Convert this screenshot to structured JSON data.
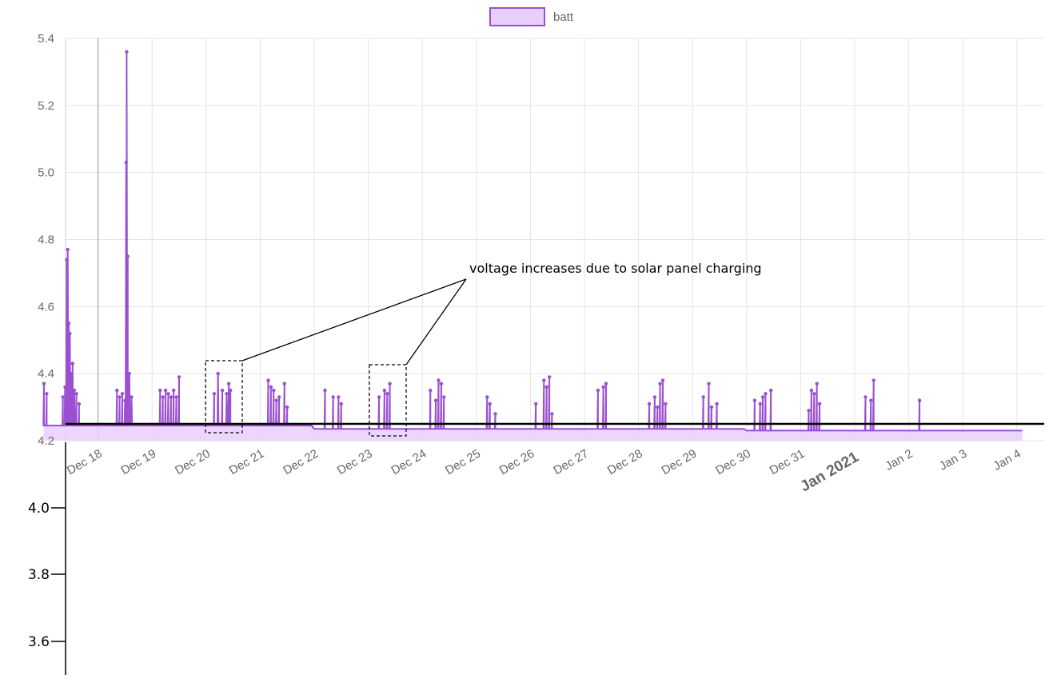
{
  "chart_data": {
    "type": "line",
    "title": "",
    "xlabel": "",
    "ylabel": "",
    "legend": {
      "position": "top",
      "entries": [
        "batt"
      ]
    },
    "series": [
      {
        "name": "batt",
        "color": "#9b4fd1",
        "fill_color": "#e9cffb",
        "baseline": 4.24,
        "spikes": [
          [
            17.0,
            4.37
          ],
          [
            17.05,
            4.34
          ],
          [
            17.35,
            4.33
          ],
          [
            17.39,
            4.36
          ],
          [
            17.42,
            4.74
          ],
          [
            17.44,
            4.77
          ],
          [
            17.46,
            4.55
          ],
          [
            17.48,
            4.52
          ],
          [
            17.5,
            4.4
          ],
          [
            17.53,
            4.43
          ],
          [
            17.56,
            4.35
          ],
          [
            17.6,
            4.34
          ],
          [
            17.65,
            4.31
          ],
          [
            18.35,
            4.35
          ],
          [
            18.4,
            4.33
          ],
          [
            18.45,
            4.34
          ],
          [
            18.5,
            4.32
          ],
          [
            18.52,
            5.03
          ],
          [
            18.53,
            5.36
          ],
          [
            18.55,
            4.75
          ],
          [
            18.58,
            4.4
          ],
          [
            18.62,
            4.33
          ],
          [
            19.15,
            4.35
          ],
          [
            19.2,
            4.33
          ],
          [
            19.25,
            4.35
          ],
          [
            19.3,
            4.34
          ],
          [
            19.35,
            4.33
          ],
          [
            19.4,
            4.35
          ],
          [
            19.45,
            4.33
          ],
          [
            19.5,
            4.39
          ],
          [
            20.15,
            4.34
          ],
          [
            20.22,
            4.4
          ],
          [
            20.3,
            4.35
          ],
          [
            20.38,
            4.34
          ],
          [
            20.42,
            4.37
          ],
          [
            20.45,
            4.35
          ],
          [
            21.15,
            4.38
          ],
          [
            21.2,
            4.36
          ],
          [
            21.25,
            4.35
          ],
          [
            21.3,
            4.32
          ],
          [
            21.35,
            4.33
          ],
          [
            21.45,
            4.37
          ],
          [
            21.5,
            4.3
          ],
          [
            22.2,
            4.35
          ],
          [
            22.35,
            4.33
          ],
          [
            22.45,
            4.33
          ],
          [
            22.5,
            4.31
          ],
          [
            23.2,
            4.33
          ],
          [
            23.3,
            4.35
          ],
          [
            23.35,
            4.34
          ],
          [
            23.4,
            4.37
          ],
          [
            24.15,
            4.35
          ],
          [
            24.25,
            4.32
          ],
          [
            24.3,
            4.38
          ],
          [
            24.35,
            4.37
          ],
          [
            24.4,
            4.33
          ],
          [
            25.2,
            4.33
          ],
          [
            25.25,
            4.31
          ],
          [
            25.35,
            4.28
          ],
          [
            26.1,
            4.31
          ],
          [
            26.25,
            4.38
          ],
          [
            26.3,
            4.36
          ],
          [
            26.35,
            4.39
          ],
          [
            26.4,
            4.28
          ],
          [
            27.25,
            4.35
          ],
          [
            27.35,
            4.36
          ],
          [
            27.4,
            4.37
          ],
          [
            28.2,
            4.31
          ],
          [
            28.3,
            4.33
          ],
          [
            28.35,
            4.3
          ],
          [
            28.4,
            4.37
          ],
          [
            28.45,
            4.38
          ],
          [
            28.5,
            4.31
          ],
          [
            29.2,
            4.33
          ],
          [
            29.3,
            4.37
          ],
          [
            29.35,
            4.3
          ],
          [
            29.45,
            4.31
          ],
          [
            30.15,
            4.32
          ],
          [
            30.25,
            4.31
          ],
          [
            30.3,
            4.33
          ],
          [
            30.35,
            4.34
          ],
          [
            30.45,
            4.35
          ],
          [
            31.15,
            4.29
          ],
          [
            31.2,
            4.35
          ],
          [
            31.25,
            4.34
          ],
          [
            31.3,
            4.37
          ],
          [
            31.35,
            4.31
          ],
          [
            32.2,
            4.33
          ],
          [
            32.3,
            4.32
          ],
          [
            32.35,
            4.38
          ],
          [
            33.2,
            4.32
          ]
        ]
      }
    ],
    "x_axis": {
      "ticks": [
        "Dec 18",
        "Dec 19",
        "Dec 20",
        "Dec 21",
        "Dec 22",
        "Dec 23",
        "Dec 24",
        "Dec 25",
        "Dec 26",
        "Dec 27",
        "Dec 28",
        "Dec 29",
        "Dec 30",
        "Dec 31",
        "Jan 2021",
        "Jan 2",
        "Jan 3",
        "Jan 4"
      ],
      "major_tick": "Jan 2021"
    },
    "y_axis": {
      "ticks": [
        "5.4",
        "5.2",
        "5.0",
        "4.8",
        "4.6",
        "4.4",
        "4.2"
      ],
      "ylim": [
        4.2,
        5.4
      ]
    },
    "extended_y_axis": {
      "ticks": [
        "4.0",
        "3.8",
        "3.6"
      ]
    },
    "reference_line": {
      "y": 4.25,
      "color": "#000000"
    },
    "annotation": {
      "text": "voltage increases due to solar panel charging",
      "targets": [
        "Dec 20",
        "Dec 23"
      ]
    },
    "grid": true
  }
}
